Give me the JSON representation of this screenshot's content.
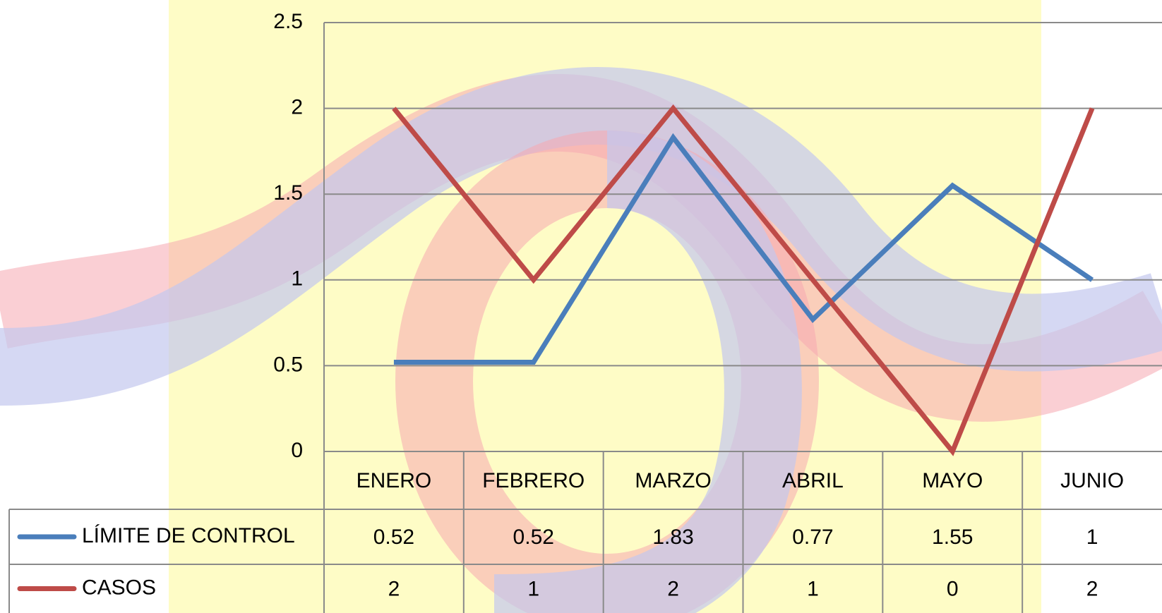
{
  "chart_data": {
    "type": "line",
    "categories": [
      "ENERO",
      "FEBRERO",
      "MARZO",
      "ABRIL",
      "MAYO",
      "JUNIO"
    ],
    "series": [
      {
        "name": "LÍMITE DE CONTROL",
        "color": "#4a7ebb",
        "values": [
          0.52,
          0.52,
          1.83,
          0.77,
          1.55,
          1
        ]
      },
      {
        "name": "CASOS",
        "color": "#be4b48",
        "values": [
          2,
          1,
          2,
          1,
          0,
          2
        ]
      }
    ],
    "ylim": [
      0,
      2.5
    ],
    "yticks": [
      0,
      0.5,
      1,
      1.5,
      2,
      2.5
    ],
    "grid": true,
    "data_table": true
  }
}
